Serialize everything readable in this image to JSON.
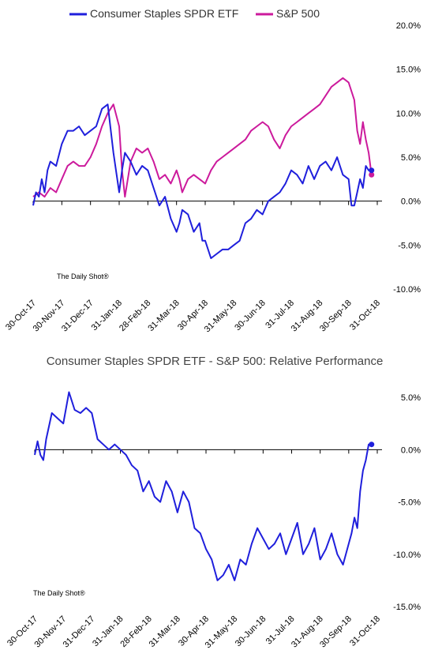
{
  "chart_data": [
    {
      "type": "line",
      "title": "",
      "legend_position": "top-left",
      "credit": "The Daily Shot®",
      "x_ticks": [
        "30-Oct-17",
        "30-Nov-17",
        "31-Dec-17",
        "31-Jan-18",
        "28-Feb-18",
        "31-Mar-18",
        "30-Apr-18",
        "31-May-18",
        "30-Jun-18",
        "31-Jul-18",
        "31-Aug-18",
        "30-Sep-18",
        "31-Oct-18"
      ],
      "y_ticks": [
        "20.0%",
        "15.0%",
        "10.0%",
        "5.0%",
        "0.0%",
        "-5.0%",
        "-10.0%"
      ],
      "ylim": [
        -10,
        20
      ],
      "y_axis_position": "right",
      "x_month_range": [
        0,
        12
      ],
      "series": [
        {
          "name": "Consumer Staples SPDR ETF",
          "color": "#1f1fdc",
          "x": [
            0,
            0.1,
            0.2,
            0.3,
            0.4,
            0.5,
            0.6,
            0.8,
            1.0,
            1.2,
            1.4,
            1.6,
            1.8,
            2.0,
            2.2,
            2.4,
            2.6,
            2.8,
            3.0,
            3.1,
            3.2,
            3.4,
            3.6,
            3.8,
            4.0,
            4.2,
            4.4,
            4.6,
            4.8,
            5.0,
            5.1,
            5.2,
            5.4,
            5.6,
            5.8,
            5.9,
            6.0,
            6.2,
            6.4,
            6.6,
            6.8,
            7.0,
            7.2,
            7.4,
            7.6,
            7.8,
            8.0,
            8.2,
            8.4,
            8.6,
            8.8,
            9.0,
            9.2,
            9.4,
            9.6,
            9.8,
            10.0,
            10.2,
            10.4,
            10.6,
            10.8,
            11.0,
            11.1,
            11.2,
            11.3,
            11.4,
            11.5,
            11.6,
            11.7,
            11.8
          ],
          "y": [
            -0.5,
            1.0,
            0.5,
            2.5,
            1.0,
            3.5,
            4.5,
            4.0,
            6.5,
            8.0,
            8.0,
            8.5,
            7.5,
            8.0,
            8.5,
            10.5,
            11.0,
            5.5,
            1.0,
            3.5,
            5.5,
            4.5,
            3.0,
            4.0,
            3.5,
            1.5,
            -0.5,
            0.5,
            -2.0,
            -3.5,
            -2.5,
            -1.0,
            -1.5,
            -3.5,
            -2.5,
            -4.5,
            -4.5,
            -6.5,
            -6.0,
            -5.5,
            -5.5,
            -5.0,
            -4.5,
            -2.5,
            -2.0,
            -1.0,
            -1.5,
            0.0,
            0.5,
            1.0,
            2.0,
            3.5,
            3.0,
            2.0,
            4.0,
            2.5,
            4.0,
            4.5,
            3.5,
            5.0,
            3.0,
            2.5,
            -0.5,
            -0.5,
            1.0,
            2.5,
            1.5,
            4.0,
            3.5,
            3.5
          ]
        },
        {
          "name": "S&P 500",
          "color": "#cc1a9c",
          "x": [
            0,
            0.2,
            0.4,
            0.6,
            0.8,
            1.0,
            1.2,
            1.4,
            1.6,
            1.8,
            2.0,
            2.2,
            2.4,
            2.6,
            2.8,
            3.0,
            3.1,
            3.2,
            3.4,
            3.6,
            3.8,
            4.0,
            4.2,
            4.4,
            4.6,
            4.8,
            5.0,
            5.1,
            5.2,
            5.4,
            5.6,
            5.8,
            6.0,
            6.2,
            6.4,
            6.6,
            6.8,
            7.0,
            7.2,
            7.4,
            7.6,
            7.8,
            8.0,
            8.2,
            8.4,
            8.6,
            8.8,
            9.0,
            9.2,
            9.4,
            9.6,
            9.8,
            10.0,
            10.2,
            10.4,
            10.6,
            10.8,
            11.0,
            11.1,
            11.2,
            11.3,
            11.4,
            11.5,
            11.6,
            11.7,
            11.8
          ],
          "y": [
            0.5,
            1.0,
            0.5,
            1.5,
            1.0,
            2.5,
            4.0,
            4.5,
            4.0,
            4.0,
            5.0,
            6.5,
            8.5,
            10.0,
            11.0,
            8.5,
            3.5,
            0.5,
            4.5,
            6.0,
            5.5,
            6.0,
            4.5,
            2.5,
            3.0,
            2.0,
            3.5,
            2.5,
            1.0,
            2.5,
            3.0,
            2.5,
            2.0,
            3.5,
            4.5,
            5.0,
            5.5,
            6.0,
            6.5,
            7.0,
            8.0,
            8.5,
            9.0,
            8.5,
            7.0,
            6.0,
            7.5,
            8.5,
            9.0,
            9.5,
            10.0,
            10.5,
            11.0,
            12.0,
            13.0,
            13.5,
            14.0,
            13.5,
            12.5,
            11.5,
            8.0,
            6.5,
            9.0,
            7.0,
            5.5,
            3.0
          ]
        }
      ]
    },
    {
      "type": "line",
      "title": "Consumer Staples SPDR ETF - S&P 500:   Relative Performance",
      "credit": "The Daily Shot®",
      "x_ticks": [
        "30-Oct-17",
        "30-Nov-17",
        "31-Dec-17",
        "31-Jan-18",
        "28-Feb-18",
        "31-Mar-18",
        "30-Apr-18",
        "31-May-18",
        "30-Jun-18",
        "31-Jul-18",
        "31-Aug-18",
        "30-Sep-18",
        "31-Oct-18"
      ],
      "y_ticks": [
        "5.0%",
        "0.0%",
        "-5.0%",
        "-10.0%",
        "-15.0%"
      ],
      "ylim": [
        -15,
        7.5
      ],
      "y_axis_position": "right",
      "x_month_range": [
        0,
        12
      ],
      "series": [
        {
          "name": "",
          "color": "#1f1fdc",
          "x": [
            0,
            0.1,
            0.2,
            0.3,
            0.4,
            0.6,
            0.8,
            1.0,
            1.2,
            1.4,
            1.6,
            1.8,
            2.0,
            2.2,
            2.4,
            2.6,
            2.8,
            3.0,
            3.2,
            3.4,
            3.6,
            3.8,
            4.0,
            4.2,
            4.4,
            4.6,
            4.8,
            5.0,
            5.2,
            5.4,
            5.6,
            5.8,
            6.0,
            6.2,
            6.4,
            6.6,
            6.8,
            7.0,
            7.2,
            7.4,
            7.6,
            7.8,
            8.0,
            8.2,
            8.4,
            8.6,
            8.8,
            9.0,
            9.2,
            9.4,
            9.6,
            9.8,
            10.0,
            10.2,
            10.4,
            10.6,
            10.8,
            11.0,
            11.1,
            11.2,
            11.3,
            11.4,
            11.5,
            11.6,
            11.7,
            11.8
          ],
          "y": [
            -0.5,
            0.8,
            -0.5,
            -1.0,
            1.0,
            3.5,
            3.0,
            2.5,
            5.5,
            3.8,
            3.5,
            4.0,
            3.5,
            1.0,
            0.5,
            0.0,
            0.5,
            0.0,
            -0.5,
            -1.5,
            -2.0,
            -4.0,
            -3.0,
            -4.5,
            -5.0,
            -3.0,
            -4.0,
            -6.0,
            -4.0,
            -5.0,
            -7.5,
            -8.0,
            -9.5,
            -10.5,
            -12.5,
            -12.0,
            -11.0,
            -12.5,
            -10.5,
            -11.0,
            -9.0,
            -7.5,
            -8.5,
            -9.5,
            -9.0,
            -8.0,
            -10.0,
            -8.5,
            -7.0,
            -10.0,
            -9.0,
            -7.5,
            -10.5,
            -9.5,
            -8.0,
            -10.0,
            -11.0,
            -9.0,
            -8.0,
            -6.5,
            -7.5,
            -4.0,
            -2.0,
            -1.0,
            0.5,
            0.5
          ]
        }
      ]
    }
  ]
}
